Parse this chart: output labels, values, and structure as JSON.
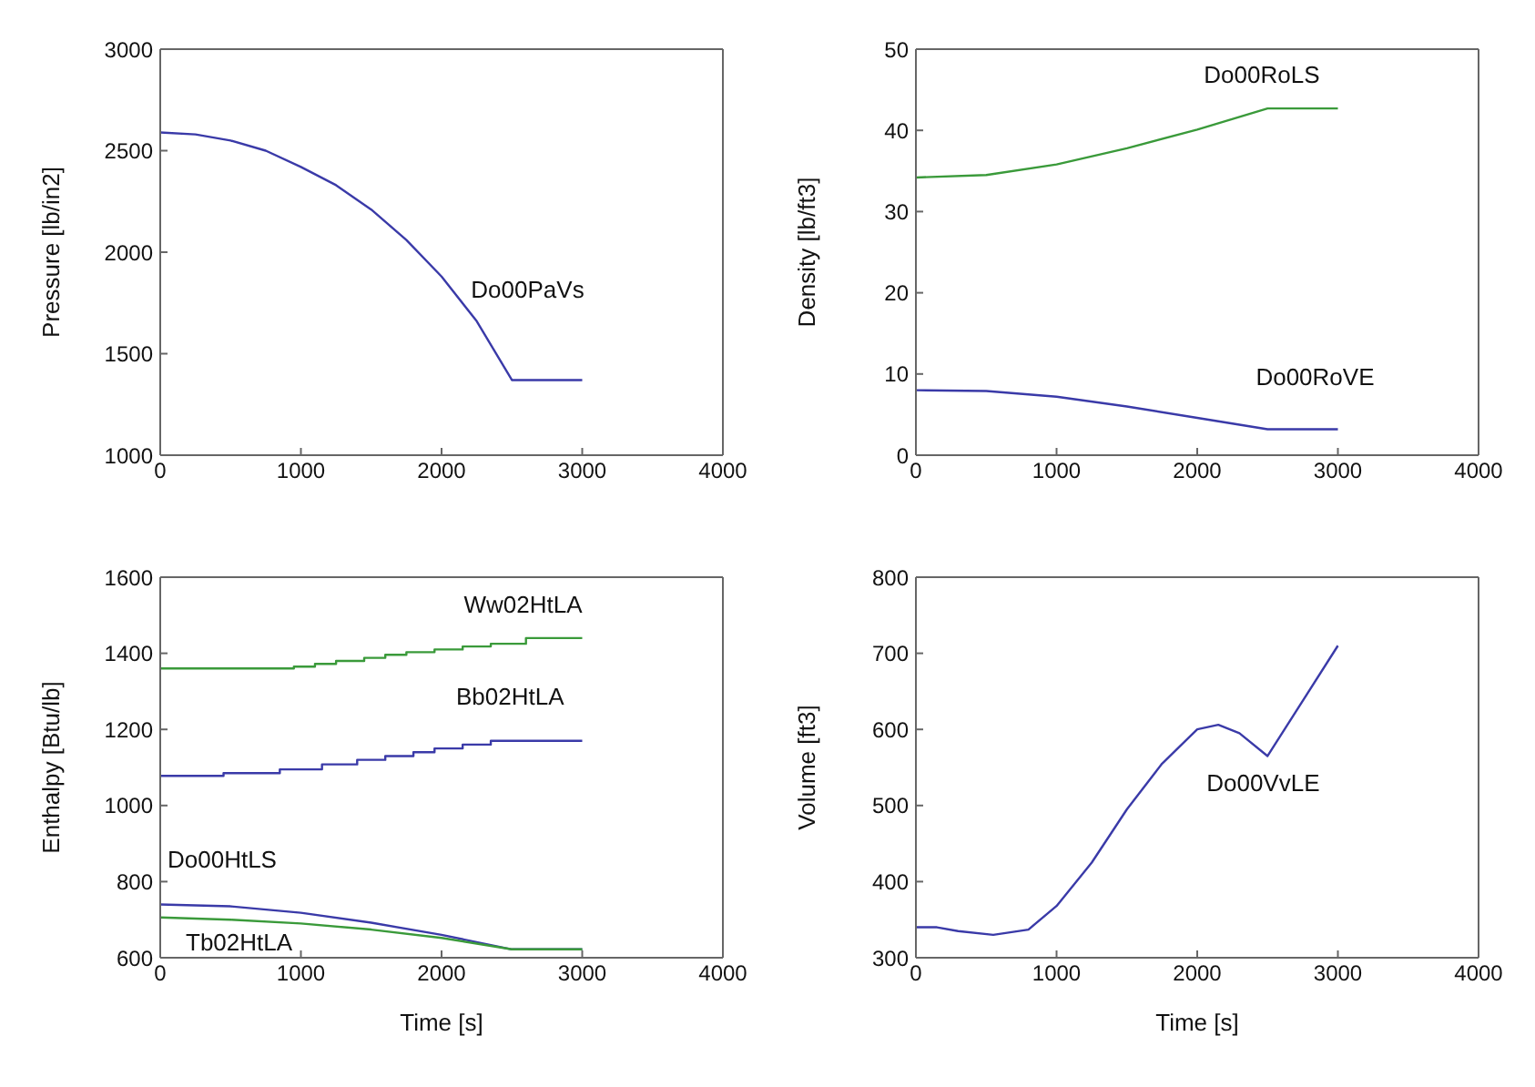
{
  "chart_data": [
    {
      "type": "line",
      "ylabel": "Pressure [lb/in2]",
      "xlim": [
        0,
        4000
      ],
      "xticks": [
        0,
        1000,
        2000,
        3000,
        4000
      ],
      "ylim": [
        1000,
        3000
      ],
      "yticks": [
        1000,
        1500,
        2000,
        2500,
        3000
      ],
      "series": [
        {
          "name": "Do00PaVs",
          "color": "#3a3aa8",
          "x": [
            0,
            250,
            500,
            750,
            1000,
            1250,
            1500,
            1750,
            2000,
            2250,
            2500,
            3000
          ],
          "values": [
            2590,
            2580,
            2550,
            2500,
            2420,
            2330,
            2210,
            2060,
            1880,
            1660,
            1370,
            1370
          ]
        }
      ]
    },
    {
      "type": "line",
      "ylabel": "Density [lb/ft3]",
      "xlim": [
        0,
        4000
      ],
      "xticks": [
        0,
        1000,
        2000,
        3000,
        4000
      ],
      "ylim": [
        0,
        50
      ],
      "yticks": [
        0,
        10,
        20,
        30,
        40,
        50
      ],
      "series": [
        {
          "name": "Do00RoLS",
          "color": "#3a9a3a",
          "x": [
            0,
            500,
            1000,
            1500,
            2000,
            2500,
            3000
          ],
          "values": [
            34.2,
            34.5,
            35.8,
            37.8,
            40.1,
            42.7,
            42.7
          ]
        },
        {
          "name": "Do00RoVE",
          "color": "#3a3aa8",
          "x": [
            0,
            500,
            1000,
            1500,
            2000,
            2500,
            3000
          ],
          "values": [
            8,
            7.9,
            7.2,
            6,
            4.6,
            3.2,
            3.2
          ]
        }
      ]
    },
    {
      "type": "line",
      "xlabel": "Time [s]",
      "ylabel": "Enthalpy [Btu/lb]",
      "xlim": [
        0,
        4000
      ],
      "xticks": [
        0,
        1000,
        2000,
        3000,
        4000
      ],
      "ylim": [
        600,
        1600
      ],
      "yticks": [
        600,
        800,
        1000,
        1200,
        1400,
        1600
      ],
      "series": [
        {
          "name": "Ww02HtLA",
          "type": "step",
          "color": "#3a9a3a",
          "x": [
            0,
            950,
            1100,
            1250,
            1450,
            1600,
            1750,
            1950,
            2150,
            2350,
            2600,
            3000
          ],
          "values": [
            1360,
            1365,
            1372,
            1380,
            1388,
            1396,
            1403,
            1410,
            1418,
            1425,
            1440,
            1440
          ]
        },
        {
          "name": "Bb02HtLA",
          "type": "step",
          "color": "#3a3aa8",
          "x": [
            0,
            450,
            850,
            1150,
            1400,
            1600,
            1800,
            1950,
            2150,
            2350,
            3000
          ],
          "values": [
            1078,
            1085,
            1095,
            1108,
            1120,
            1130,
            1140,
            1150,
            1160,
            1170,
            1170
          ]
        },
        {
          "name": "Do00HtLS",
          "color": "#3a3aa8",
          "x": [
            0,
            500,
            1000,
            1500,
            2000,
            2500,
            3000
          ],
          "values": [
            740,
            735,
            718,
            692,
            660,
            622,
            622
          ]
        },
        {
          "name": "Tb02HtLA",
          "color": "#3a9a3a",
          "x": [
            0,
            500,
            1000,
            1500,
            2000,
            2500,
            3000
          ],
          "values": [
            706,
            700,
            690,
            674,
            652,
            622,
            622
          ]
        }
      ]
    },
    {
      "type": "line",
      "xlabel": "Time [s]",
      "ylabel": "Volume [ft3]",
      "xlim": [
        0,
        4000
      ],
      "xticks": [
        0,
        1000,
        2000,
        3000,
        4000
      ],
      "ylim": [
        300,
        800
      ],
      "yticks": [
        300,
        400,
        500,
        600,
        700,
        800
      ],
      "series": [
        {
          "name": "Do00VvLE",
          "color": "#3a3aa8",
          "x": [
            0,
            150,
            300,
            550,
            800,
            1000,
            1250,
            1500,
            1750,
            2000,
            2150,
            2300,
            2500,
            3000
          ],
          "values": [
            340,
            340,
            335,
            330,
            337,
            368,
            425,
            495,
            555,
            600,
            606,
            595,
            565,
            710
          ]
        }
      ]
    }
  ]
}
